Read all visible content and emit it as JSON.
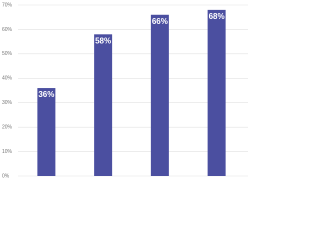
{
  "chart_data": {
    "type": "bar",
    "categories": [
      null,
      null,
      null,
      null
    ],
    "values": [
      36,
      58,
      66,
      68
    ],
    "value_labels": [
      "36%",
      "58%",
      "66%",
      "68%"
    ],
    "color": "#4b4fa0",
    "ylim": [
      0,
      70
    ],
    "yticks": [
      {
        "value": 0,
        "label": "0%"
      },
      {
        "value": 10,
        "label": "10%"
      },
      {
        "value": 20,
        "label": "20%"
      },
      {
        "value": 30,
        "label": "30%"
      },
      {
        "value": 40,
        "label": "40%"
      },
      {
        "value": 50,
        "label": "50%"
      },
      {
        "value": 60,
        "label": "60%"
      },
      {
        "value": 70,
        "label": "70%"
      }
    ],
    "grid": true
  }
}
